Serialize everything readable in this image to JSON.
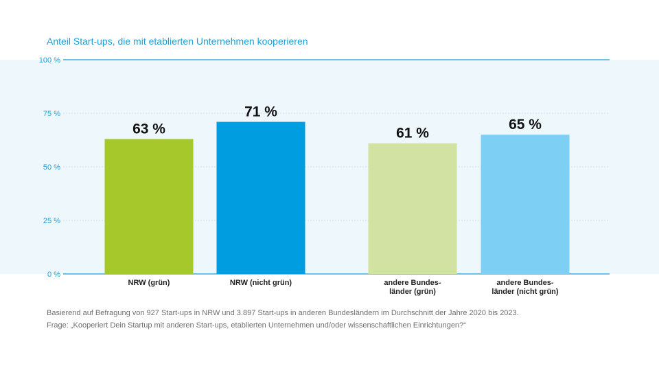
{
  "subtitle": "Anteil Start-ups, die mit etablierten Unternehmen kooperieren",
  "footnote": {
    "line1": "Basierend auf Befragung von 927 Start-ups in NRW und 3.897 Start-ups in anderen Bundesländern im Durchschnitt der Jahre 2020 bis 2023.",
    "line2": "Frage: „Kooperiert Dein Startup mit anderen Start-ups, etablierten Unternehmen und/oder wissenschaftlichen Einrichtungen?“"
  },
  "chart_data": {
    "type": "bar",
    "ylim": [
      0,
      100
    ],
    "yticks": [
      {
        "value": 0,
        "label": "0 %"
      },
      {
        "value": 25,
        "label": "25 %"
      },
      {
        "value": 50,
        "label": "50 %"
      },
      {
        "value": 75,
        "label": "75 %"
      },
      {
        "value": 100,
        "label": "100 %"
      }
    ],
    "grid": true,
    "bars": [
      {
        "category_lines": [
          "NRW (grün)"
        ],
        "value": 63,
        "label": "63 %",
        "color": "#a6c82a"
      },
      {
        "category_lines": [
          "NRW (nicht grün)"
        ],
        "value": 71,
        "label": "71 %",
        "color": "#009ee0"
      },
      {
        "category_lines": [
          "andere Bundes-",
          "länder (grün)"
        ],
        "value": 61,
        "label": "61 %",
        "color": "#d2e2a2"
      },
      {
        "category_lines": [
          "andere Bundes-",
          "länder (nicht grün)"
        ],
        "value": 65,
        "label": "65 %",
        "color": "#7dcff4"
      }
    ],
    "colors": {
      "plot_background": "#eef7fb",
      "axis_line": "#1b9fd8",
      "grid_line": "#c9dfe8",
      "tick_label": "#1b9fd8",
      "value_label": "#111111",
      "category_label": "#222222"
    }
  }
}
